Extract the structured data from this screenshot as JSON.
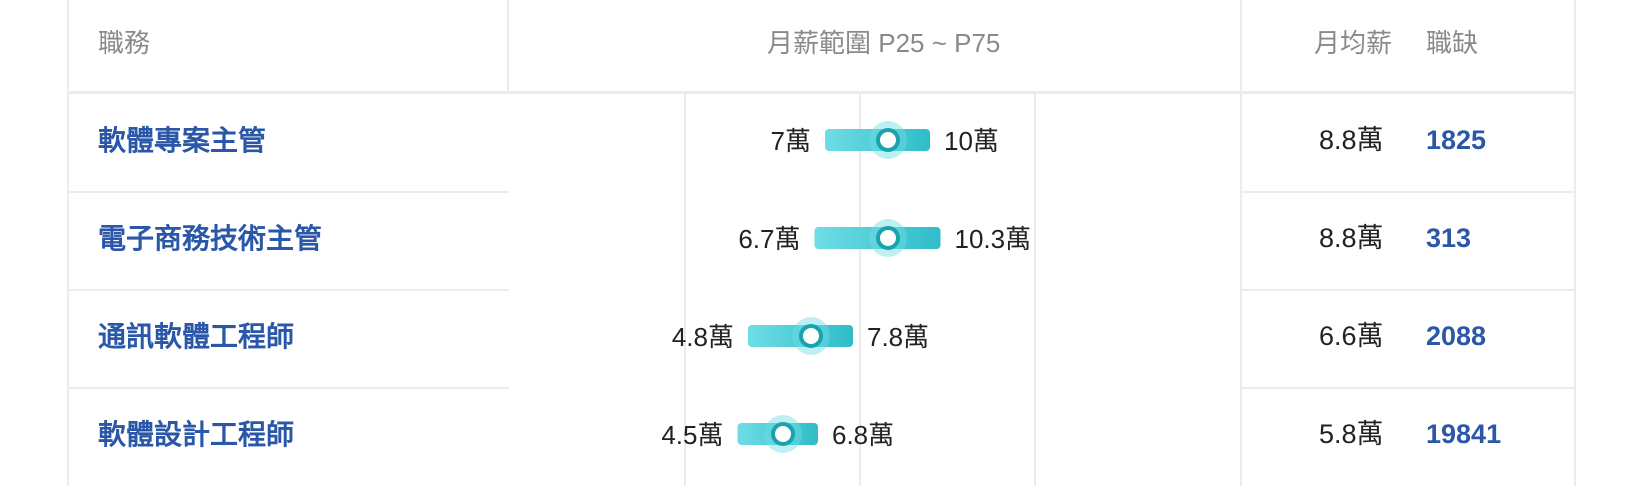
{
  "headers": {
    "title": "職務",
    "range": "月薪範圍 P25 ~ P75",
    "avg": "月均薪",
    "jobs": "職缺"
  },
  "chart_data": {
    "type": "range",
    "unit": "萬",
    "xlim": [
      2,
      14
    ],
    "gridlines": [
      3,
      8,
      13
    ],
    "series": [
      {
        "title": "軟體專案主管",
        "low": 7,
        "high": 10,
        "avg": 8.8,
        "low_label": "7萬",
        "high_label": "10萬",
        "avg_label": "8.8萬",
        "jobs": "1825"
      },
      {
        "title": "電子商務技術主管",
        "low": 6.7,
        "high": 10.3,
        "avg": 8.8,
        "low_label": "6.7萬",
        "high_label": "10.3萬",
        "avg_label": "8.8萬",
        "jobs": "313"
      },
      {
        "title": "通訊軟體工程師",
        "low": 4.8,
        "high": 7.8,
        "avg": 6.6,
        "low_label": "4.8萬",
        "high_label": "7.8萬",
        "avg_label": "6.6萬",
        "jobs": "2088"
      },
      {
        "title": "軟體設計工程師",
        "low": 4.5,
        "high": 6.8,
        "avg": 5.8,
        "low_label": "4.5萬",
        "high_label": "6.8萬",
        "avg_label": "5.8萬",
        "jobs": "19841"
      }
    ]
  },
  "colors": {
    "bar_start": "#6fdde5",
    "bar_end": "#2fbcc8",
    "knob_border": "#1aa3ad",
    "title": "#2a57a8",
    "header_text": "#8a8a8a"
  }
}
